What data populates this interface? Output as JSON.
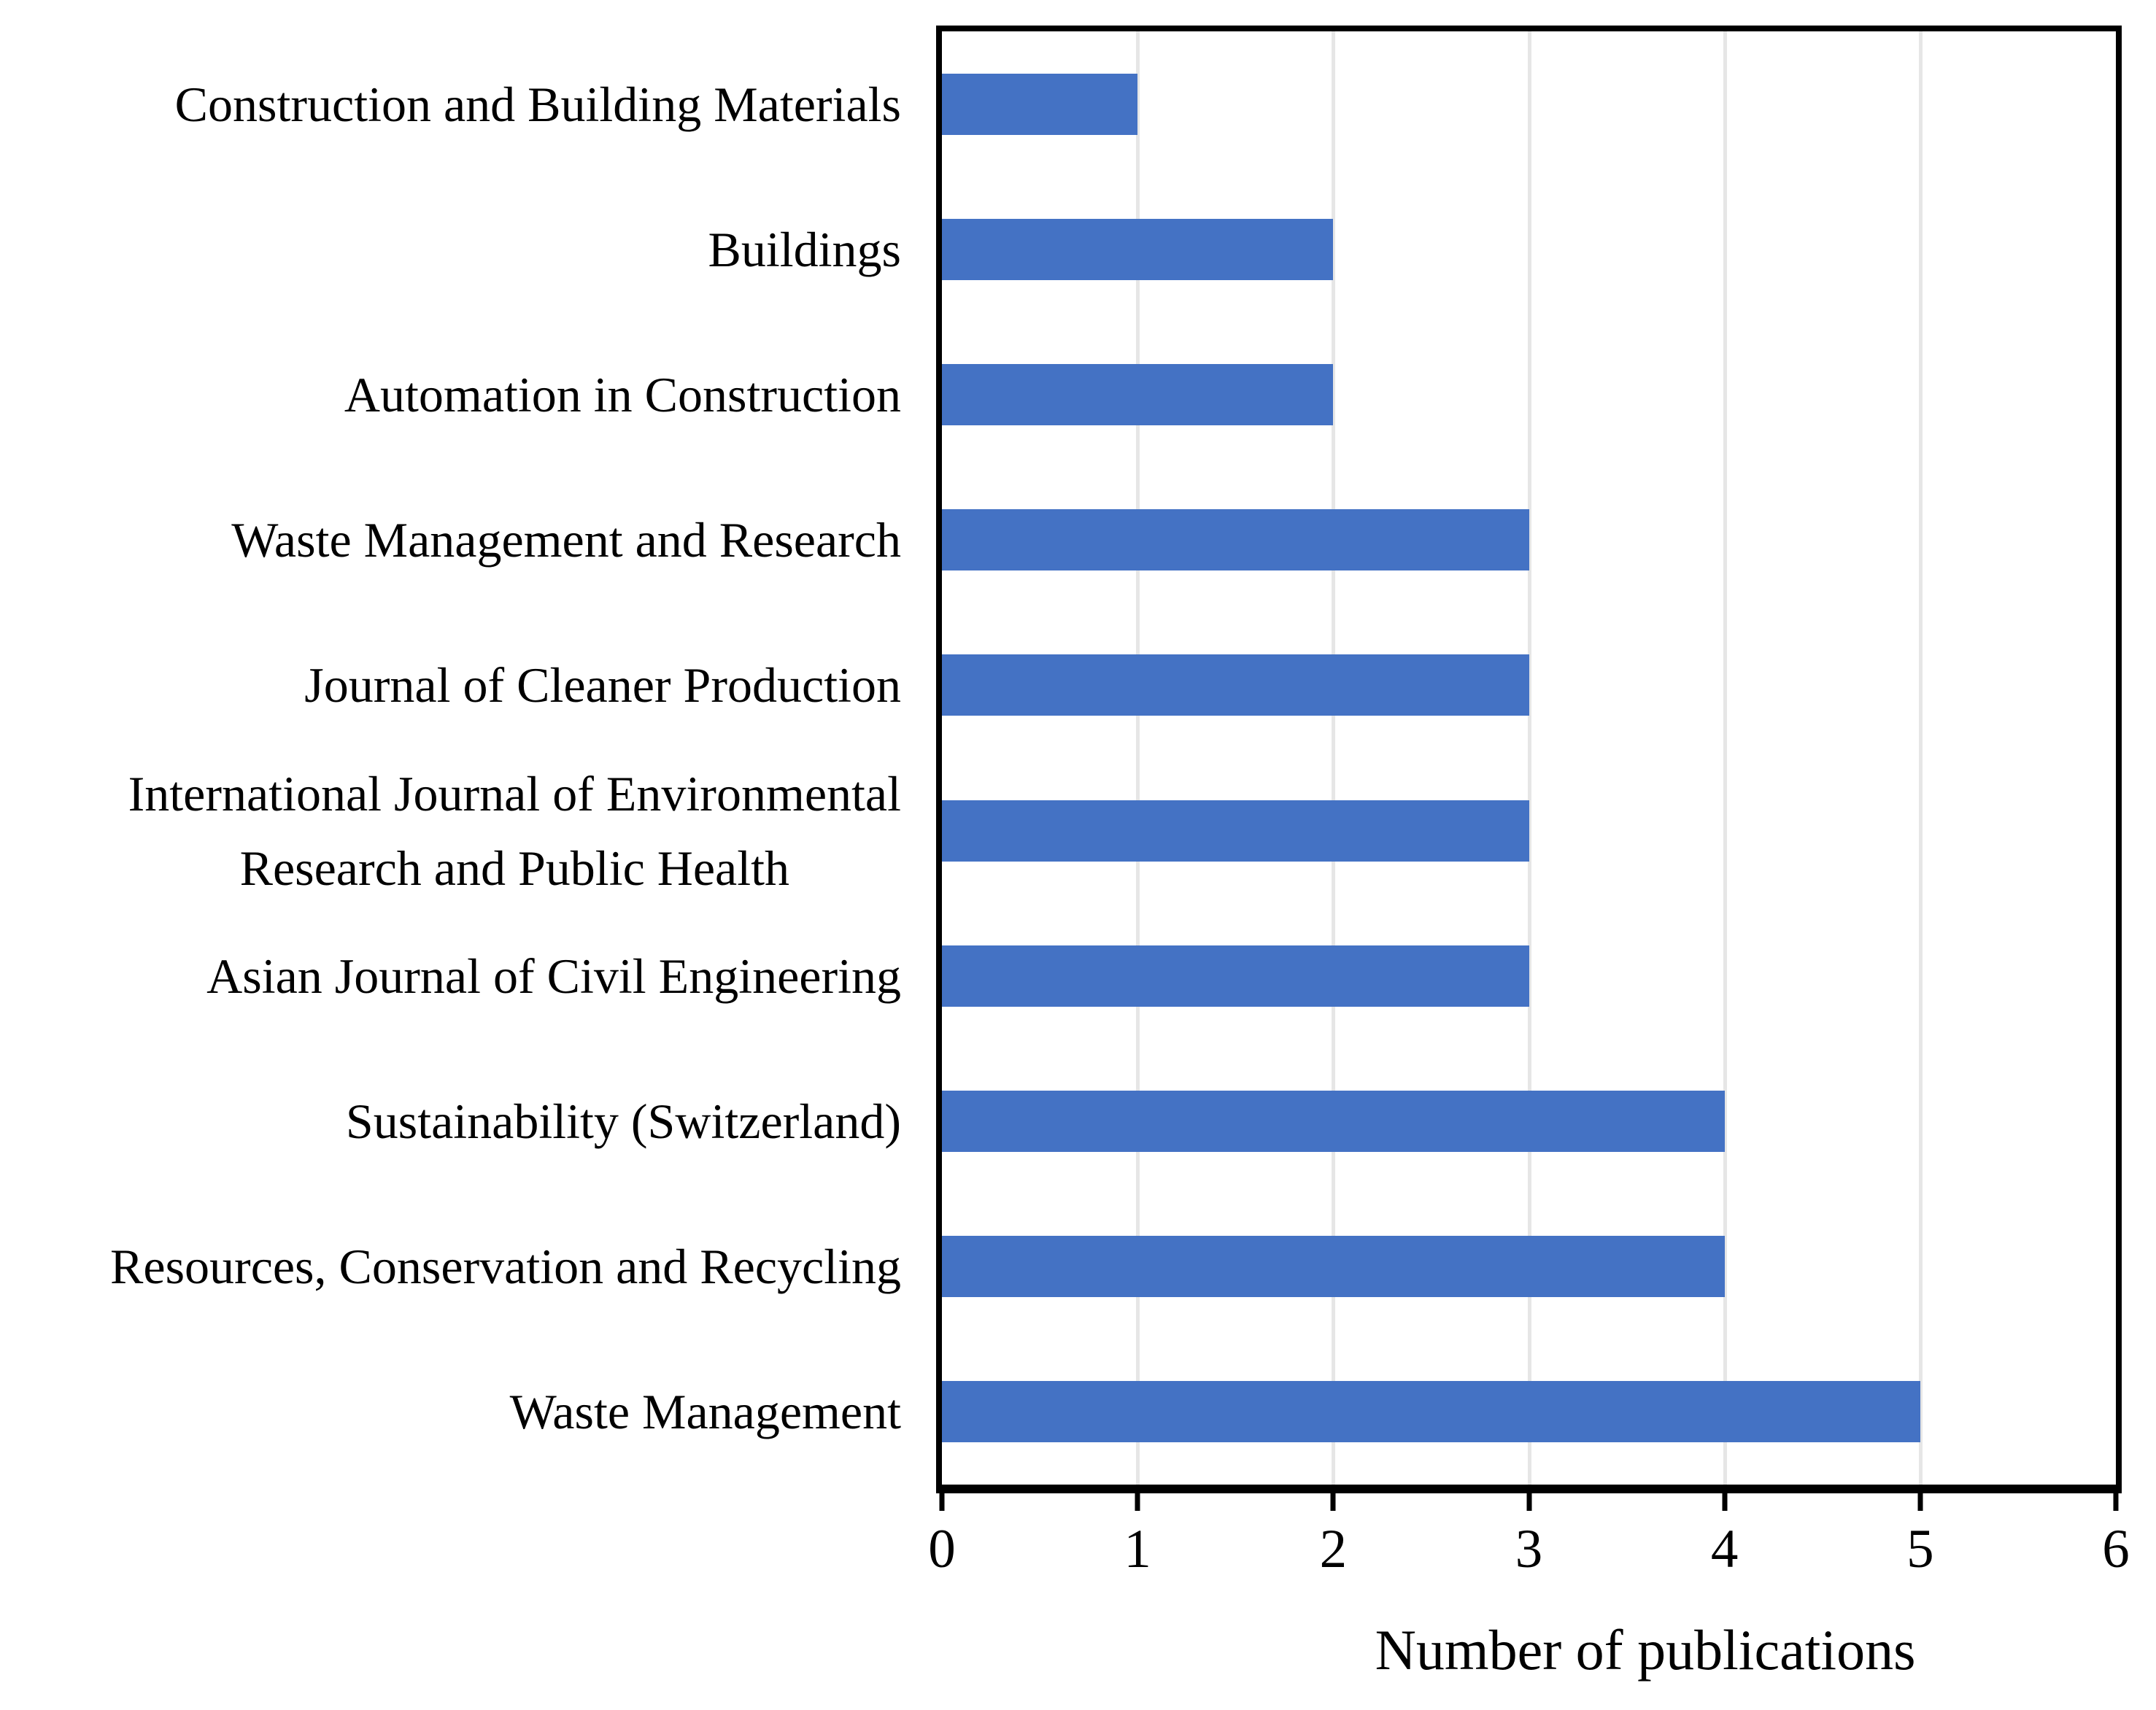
{
  "figure": {
    "background": "#FFFFFF"
  },
  "chart_data": {
    "type": "bar",
    "orientation": "horizontal",
    "title": "",
    "xlabel": "Number of publications",
    "ylabel": "",
    "xlim": [
      0,
      6
    ],
    "xticks": [
      0,
      1,
      2,
      3,
      4,
      5,
      6
    ],
    "grid": true,
    "legend_position": "none",
    "bar_color": "#4472C4",
    "gridline_color": "#E6E6E6",
    "axis_color": "#000000",
    "categories": [
      "Construction and Building Materials",
      "Buildings",
      "Automation in Construction",
      "Waste Management and Research",
      "Journal of Cleaner Production",
      "International Journal of Environmental\nResearch and Public Health",
      "Asian Journal of Civil Engineering",
      "Sustainability (Switzerland)",
      "Resources, Conservation and Recycling",
      "Waste Management"
    ],
    "values": [
      1,
      2,
      2,
      3,
      3,
      3,
      3,
      4,
      4,
      5
    ]
  }
}
